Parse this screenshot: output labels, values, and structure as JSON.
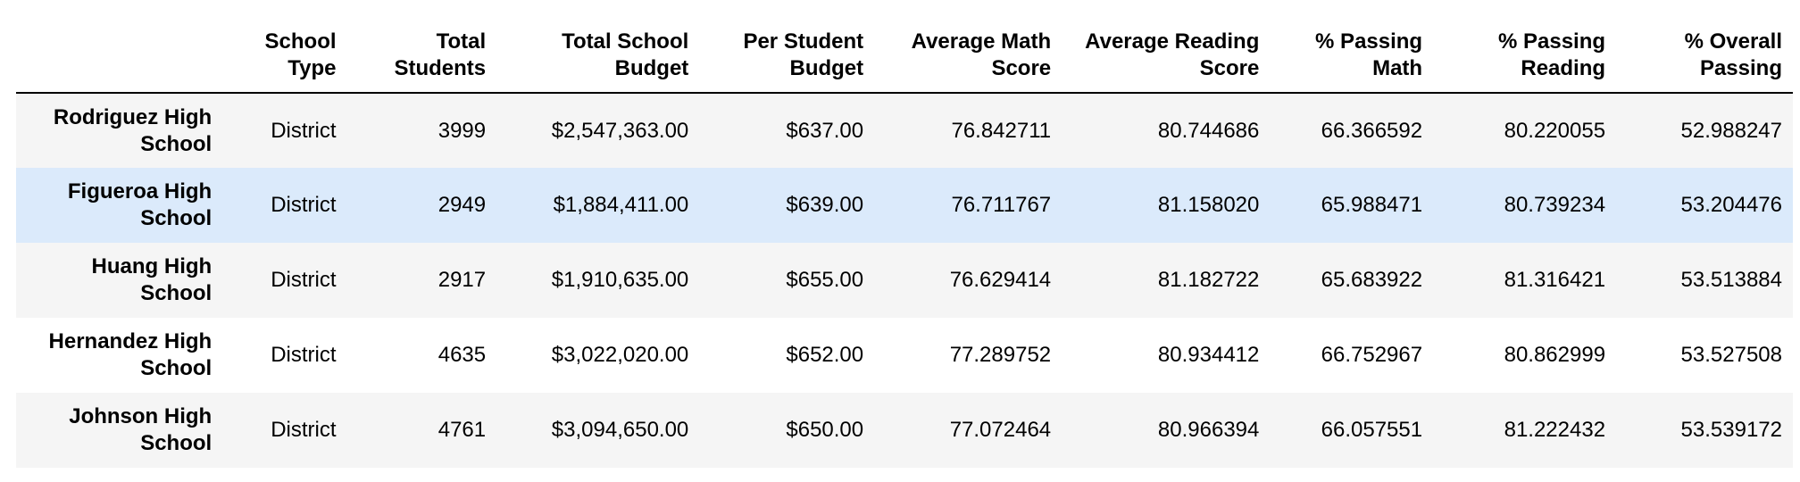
{
  "table": {
    "index_header": "",
    "columns": [
      "School Type",
      "Total Students",
      "Total School Budget",
      "Per Student Budget",
      "Average Math Score",
      "Average Reading Score",
      "% Passing Math",
      "% Passing Reading",
      "% Overall Passing"
    ],
    "rows": [
      {
        "name": "Rodriguez High School",
        "cells": [
          "District",
          "3999",
          "$2,547,363.00",
          "$637.00",
          "76.842711",
          "80.744686",
          "66.366592",
          "80.220055",
          "52.988247"
        ]
      },
      {
        "name": "Figueroa High School",
        "cells": [
          "District",
          "2949",
          "$1,884,411.00",
          "$639.00",
          "76.711767",
          "81.158020",
          "65.988471",
          "80.739234",
          "53.204476"
        ]
      },
      {
        "name": "Huang High School",
        "cells": [
          "District",
          "2917",
          "$1,910,635.00",
          "$655.00",
          "76.629414",
          "81.182722",
          "65.683922",
          "81.316421",
          "53.513884"
        ]
      },
      {
        "name": "Hernandez High School",
        "cells": [
          "District",
          "4635",
          "$3,022,020.00",
          "$652.00",
          "77.289752",
          "80.934412",
          "66.752967",
          "80.862999",
          "53.527508"
        ]
      },
      {
        "name": "Johnson High School",
        "cells": [
          "District",
          "4761",
          "$3,094,650.00",
          "$650.00",
          "77.072464",
          "80.966394",
          "66.057551",
          "81.222432",
          "53.539172"
        ]
      }
    ]
  },
  "colors": {
    "row_odd": "#f5f5f5",
    "row_even": "#ffffff",
    "row_hover": "#dbeafb",
    "header_rule": "#000000"
  }
}
